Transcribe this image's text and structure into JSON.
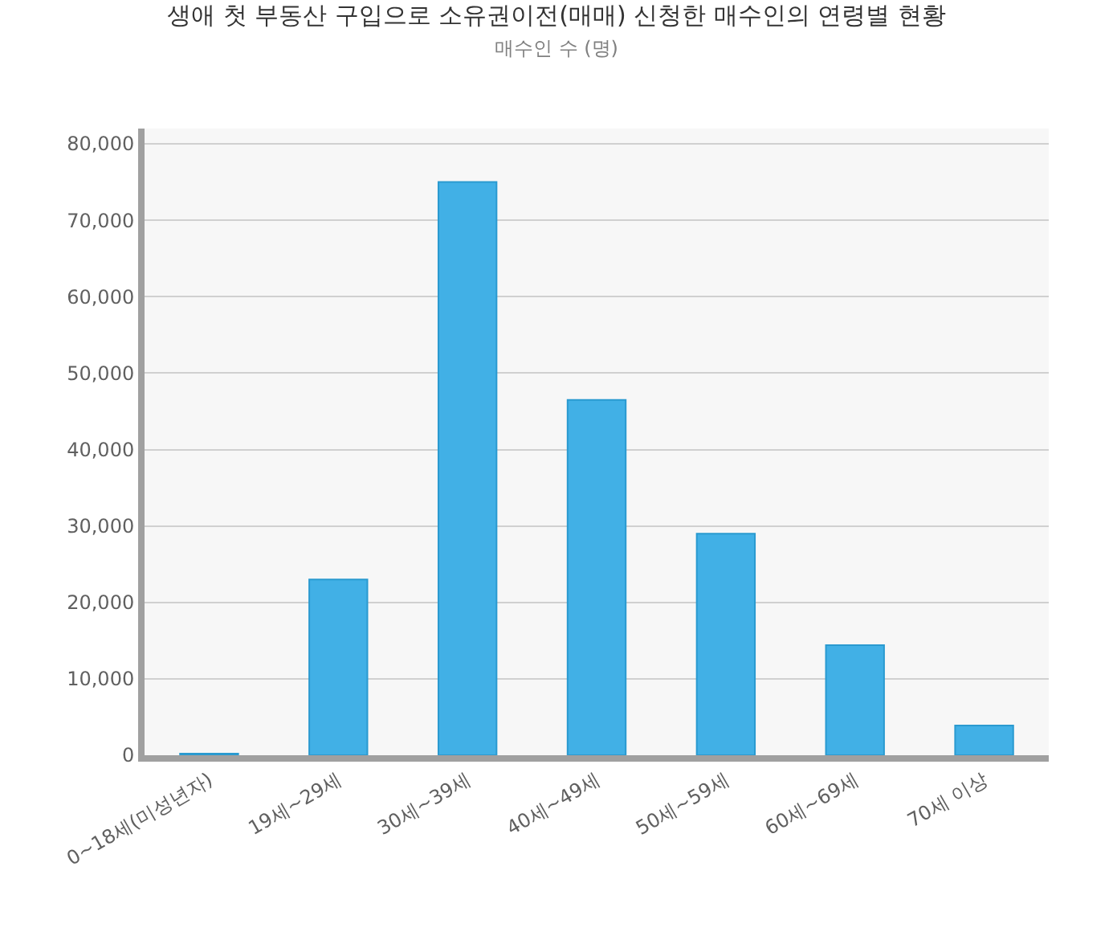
{
  "chart_data": {
    "type": "bar",
    "title": "생애 첫 부동산 구입으로 소유권이전(매매) 신청한 매수인의 연령별 현황",
    "subtitle": "매수인 수 (명)",
    "categories": [
      "0~18세(미성년자)",
      "19세~29세",
      "30세~39세",
      "40세~49세",
      "50세~59세",
      "60세~69세",
      "70세 이상"
    ],
    "values": [
      200,
      23000,
      75000,
      46500,
      29000,
      14400,
      3900
    ],
    "color": "#41b0e6",
    "ylim": [
      0,
      82000
    ],
    "yticks": [
      {
        "value": 0,
        "label": "0"
      },
      {
        "value": 10000,
        "label": "10,000"
      },
      {
        "value": 20000,
        "label": "20,000"
      },
      {
        "value": 30000,
        "label": "30,000"
      },
      {
        "value": 40000,
        "label": "40,000"
      },
      {
        "value": 50000,
        "label": "50,000"
      },
      {
        "value": 60000,
        "label": "60,000"
      },
      {
        "value": 70000,
        "label": "70,000"
      },
      {
        "value": 80000,
        "label": "80,000"
      }
    ],
    "grid": "y"
  }
}
